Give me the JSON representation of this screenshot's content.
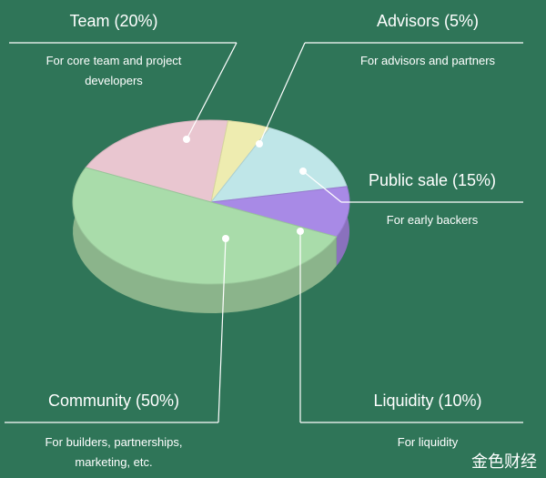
{
  "chart_data": {
    "type": "pie",
    "categories": [
      "Team (20%)",
      "Advisors (5%)",
      "Public sale (15%)",
      "Liquidity (10%)",
      "Community (50%)"
    ],
    "values": [
      20,
      5,
      15,
      10,
      50
    ],
    "descriptions": [
      "For core team and project developers",
      "For advisors and partners",
      "For early backers",
      "For liquidity",
      "For builders, partnerships, marketing, etc."
    ],
    "colors": [
      "#e9c6d0",
      "#eeecb0",
      "#bfe6e8",
      "#a88ae6",
      "#a9dcaa"
    ],
    "watermark": "金色财经"
  }
}
